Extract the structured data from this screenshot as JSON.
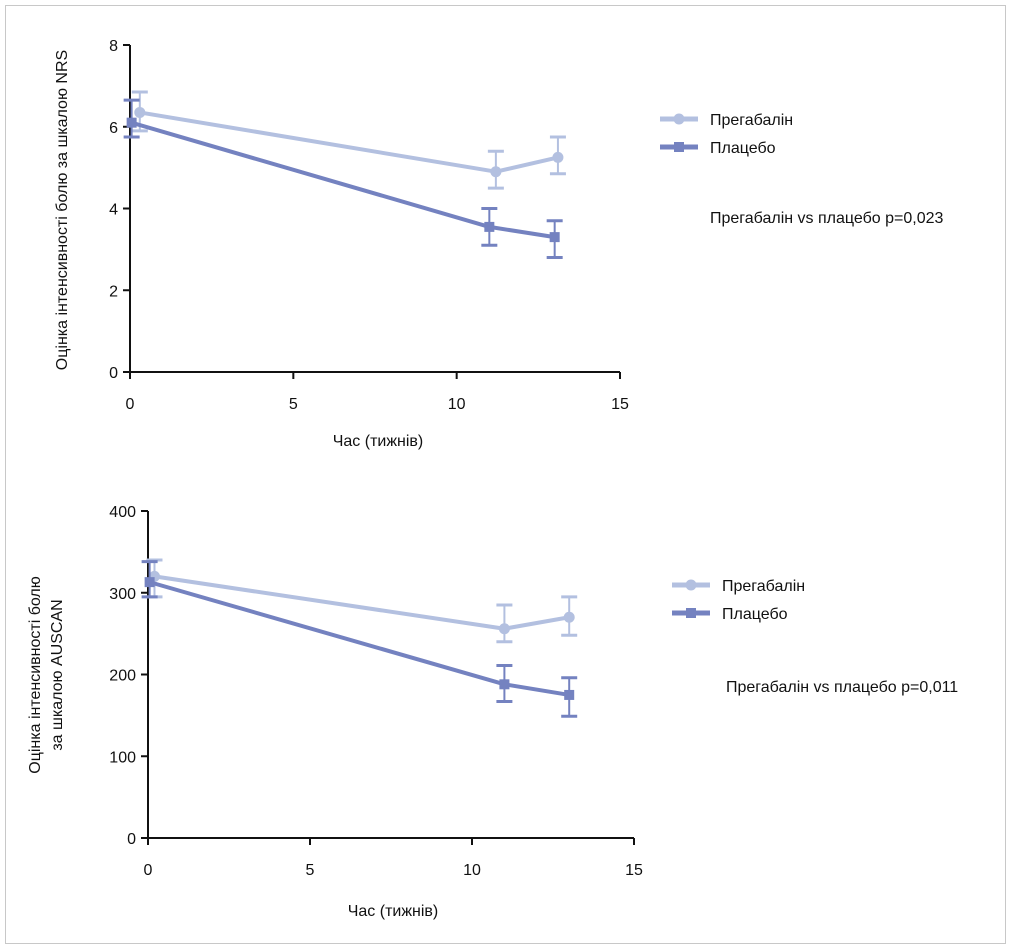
{
  "chart_data": [
    {
      "type": "line",
      "title": "",
      "xlabel": "Час (тижнів)",
      "ylabel": "Оцінка інтенсивності болю за шкалою NRS",
      "ylabel_lines": [
        "Оцінка інтенсивності болю за шкалою NRS"
      ],
      "xlim": [
        0,
        15
      ],
      "ylim": [
        0,
        8
      ],
      "xticks": [
        0,
        5,
        10,
        15
      ],
      "yticks": [
        0,
        2,
        4,
        6,
        8
      ],
      "xtick_labels": [
        "0",
        "5",
        "10",
        "15"
      ],
      "ytick_labels": [
        "0",
        "2",
        "4",
        "6",
        "8"
      ],
      "legend_position": "right",
      "annotation": "Прегабалін vs плацебо p=0,023",
      "series": [
        {
          "name": "Прегабалін",
          "color": "#b3c0e0",
          "marker": "circle",
          "x": [
            0.3,
            11.2,
            13.1
          ],
          "y": [
            6.35,
            4.9,
            5.25
          ],
          "err_low": [
            5.9,
            4.5,
            4.85
          ],
          "err_high": [
            6.85,
            5.4,
            5.75
          ]
        },
        {
          "name": "Плацебо",
          "color": "#7482c0",
          "marker": "square",
          "x": [
            0.05,
            11.0,
            13.0
          ],
          "y": [
            6.1,
            3.55,
            3.3
          ],
          "err_low": [
            5.75,
            3.1,
            2.8
          ],
          "err_high": [
            6.65,
            4.0,
            3.7
          ]
        }
      ]
    },
    {
      "type": "line",
      "title": "",
      "xlabel": "Час (тижнів)",
      "ylabel": "Оцінка інтенсивності болю за шкалою AUSCAN",
      "ylabel_lines": [
        "Оцінка інтенсивності болю",
        "за шкалою AUSCAN"
      ],
      "xlim": [
        0,
        15
      ],
      "ylim": [
        0,
        400
      ],
      "xticks": [
        0,
        5,
        10,
        15
      ],
      "yticks": [
        0,
        100,
        200,
        300,
        400
      ],
      "xtick_labels": [
        "0",
        "5",
        "10",
        "15"
      ],
      "ytick_labels": [
        "0",
        "100",
        "200",
        "300",
        "400"
      ],
      "legend_position": "right",
      "annotation": "Прегабалін vs плацебо p=0,011",
      "series": [
        {
          "name": "Прегабалін",
          "color": "#b3c0e0",
          "marker": "circle",
          "x": [
            0.2,
            11.0,
            13.0
          ],
          "y": [
            320,
            256,
            270
          ],
          "err_low": [
            295,
            240,
            248
          ],
          "err_high": [
            340,
            285,
            295
          ]
        },
        {
          "name": "Плацебо",
          "color": "#7482c0",
          "marker": "square",
          "x": [
            0.05,
            11.0,
            13.0
          ],
          "y": [
            313,
            188,
            175
          ],
          "err_low": [
            295,
            167,
            149
          ],
          "err_high": [
            338,
            211,
            196
          ]
        }
      ]
    }
  ]
}
